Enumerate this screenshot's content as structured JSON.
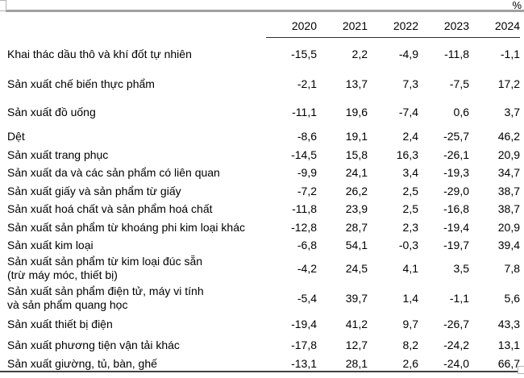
{
  "unit_label": "%",
  "table": {
    "columns": [
      "2020",
      "2021",
      "2022",
      "2023",
      "2024"
    ],
    "rows": [
      {
        "label": "Khai thác dầu thô và khí đốt tự nhiên",
        "values": [
          "-15,5",
          "2,2",
          "-4,9",
          "-11,8",
          "-1,1"
        ]
      },
      {
        "label": "Sản xuất chế biến thực phẩm",
        "values": [
          "-2,1",
          "13,7",
          "7,3",
          "-7,5",
          "17,2"
        ]
      },
      {
        "label": "Sản xuất đồ uống",
        "values": [
          "-11,1",
          "19,6",
          "-7,4",
          "0,6",
          "3,7"
        ]
      },
      {
        "label": "Dệt",
        "values": [
          "-8,6",
          "19,1",
          "2,4",
          "-25,7",
          "46,2"
        ]
      },
      {
        "label": "Sản xuất trang phục",
        "values": [
          "-14,5",
          "15,8",
          "16,3",
          "-26,1",
          "20,9"
        ]
      },
      {
        "label": "Sản xuất da và các sản phẩm có liên quan",
        "values": [
          "-9,9",
          "24,1",
          "3,4",
          "-19,3",
          "34,7"
        ]
      },
      {
        "label": "Sản xuất giấy và sản phẩm từ giấy",
        "values": [
          "-7,2",
          "26,2",
          "2,5",
          "-29,0",
          "38,7"
        ]
      },
      {
        "label": "Sản xuất hoá chất và sản phẩm hoá chất",
        "values": [
          "-11,8",
          "23,9",
          "2,5",
          "-16,8",
          "38,7"
        ]
      },
      {
        "label": "Sản xuất sản phẩm từ khoáng phi kim loại khác",
        "values": [
          "-12,8",
          "28,7",
          "2,3",
          "-19,4",
          "20,9"
        ]
      },
      {
        "label": "Sản xuất kim loại",
        "values": [
          "-6,8",
          "54,1",
          "-0,3",
          "-19,7",
          "39,4"
        ]
      },
      {
        "label": "Sản xuất sản phẩm từ kim loại đúc sẵn\n(trừ máy móc, thiết bị)",
        "values": [
          "-4,2",
          "24,5",
          "4,1",
          "3,5",
          "7,8"
        ]
      },
      {
        "label": "Sản xuất sản phẩm điện tử, máy vi tính\nvà sản phẩm quang học",
        "values": [
          "-5,4",
          "39,7",
          "1,4",
          "-1,1",
          "5,6"
        ]
      },
      {
        "label": "Sản xuất thiết bị điện",
        "values": [
          "-19,4",
          "41,2",
          "9,7",
          "-26,7",
          "43,3"
        ]
      },
      {
        "label": "Sản xuất phương tiện vận tải khác",
        "values": [
          "-17,8",
          "12,7",
          "8,2",
          "-24,2",
          "13,1"
        ]
      },
      {
        "label": "Sản xuất giường, tủ, bàn, ghế",
        "values": [
          "-13,1",
          "28,1",
          "2,6",
          "-24,0",
          "66,7"
        ]
      }
    ]
  },
  "chart_data": {
    "type": "table",
    "title": "",
    "unit": "%",
    "categories": [
      "2020",
      "2021",
      "2022",
      "2023",
      "2024"
    ],
    "series": [
      {
        "name": "Khai thác dầu thô và khí đốt tự nhiên",
        "values": [
          -15.5,
          2.2,
          -4.9,
          -11.8,
          -1.1
        ]
      },
      {
        "name": "Sản xuất chế biến thực phẩm",
        "values": [
          -2.1,
          13.7,
          7.3,
          -7.5,
          17.2
        ]
      },
      {
        "name": "Sản xuất đồ uống",
        "values": [
          -11.1,
          19.6,
          -7.4,
          0.6,
          3.7
        ]
      },
      {
        "name": "Dệt",
        "values": [
          -8.6,
          19.1,
          2.4,
          -25.7,
          46.2
        ]
      },
      {
        "name": "Sản xuất trang phục",
        "values": [
          -14.5,
          15.8,
          16.3,
          -26.1,
          20.9
        ]
      },
      {
        "name": "Sản xuất da và các sản phẩm có liên quan",
        "values": [
          -9.9,
          24.1,
          3.4,
          -19.3,
          34.7
        ]
      },
      {
        "name": "Sản xuất giấy và sản phẩm từ giấy",
        "values": [
          -7.2,
          26.2,
          2.5,
          -29.0,
          38.7
        ]
      },
      {
        "name": "Sản xuất hoá chất và sản phẩm hoá chất",
        "values": [
          -11.8,
          23.9,
          2.5,
          -16.8,
          38.7
        ]
      },
      {
        "name": "Sản xuất sản phẩm từ khoáng phi kim loại khác",
        "values": [
          -12.8,
          28.7,
          2.3,
          -19.4,
          20.9
        ]
      },
      {
        "name": "Sản xuất kim loại",
        "values": [
          -6.8,
          54.1,
          -0.3,
          -19.7,
          39.4
        ]
      },
      {
        "name": "Sản xuất sản phẩm từ kim loại đúc sẵn (trừ máy móc, thiết bị)",
        "values": [
          -4.2,
          24.5,
          4.1,
          3.5,
          7.8
        ]
      },
      {
        "name": "Sản xuất sản phẩm điện tử, máy vi tính và sản phẩm quang học",
        "values": [
          -5.4,
          39.7,
          1.4,
          -1.1,
          5.6
        ]
      },
      {
        "name": "Sản xuất thiết bị điện",
        "values": [
          -19.4,
          41.2,
          9.7,
          -26.7,
          43.3
        ]
      },
      {
        "name": "Sản xuất phương tiện vận tải khác",
        "values": [
          -17.8,
          12.7,
          8.2,
          -24.2,
          13.1
        ]
      },
      {
        "name": "Sản xuất giường, tủ, bàn, ghế",
        "values": [
          -13.1,
          28.1,
          2.6,
          -24.0,
          66.7
        ]
      }
    ]
  },
  "colors": {
    "background": "#ffffff",
    "text": "#000000",
    "top_rule": "#a0a0a0",
    "header_rule": "#2e2e2e",
    "bottom_rule": "#404040",
    "handle_border": "#b3b3b3"
  }
}
